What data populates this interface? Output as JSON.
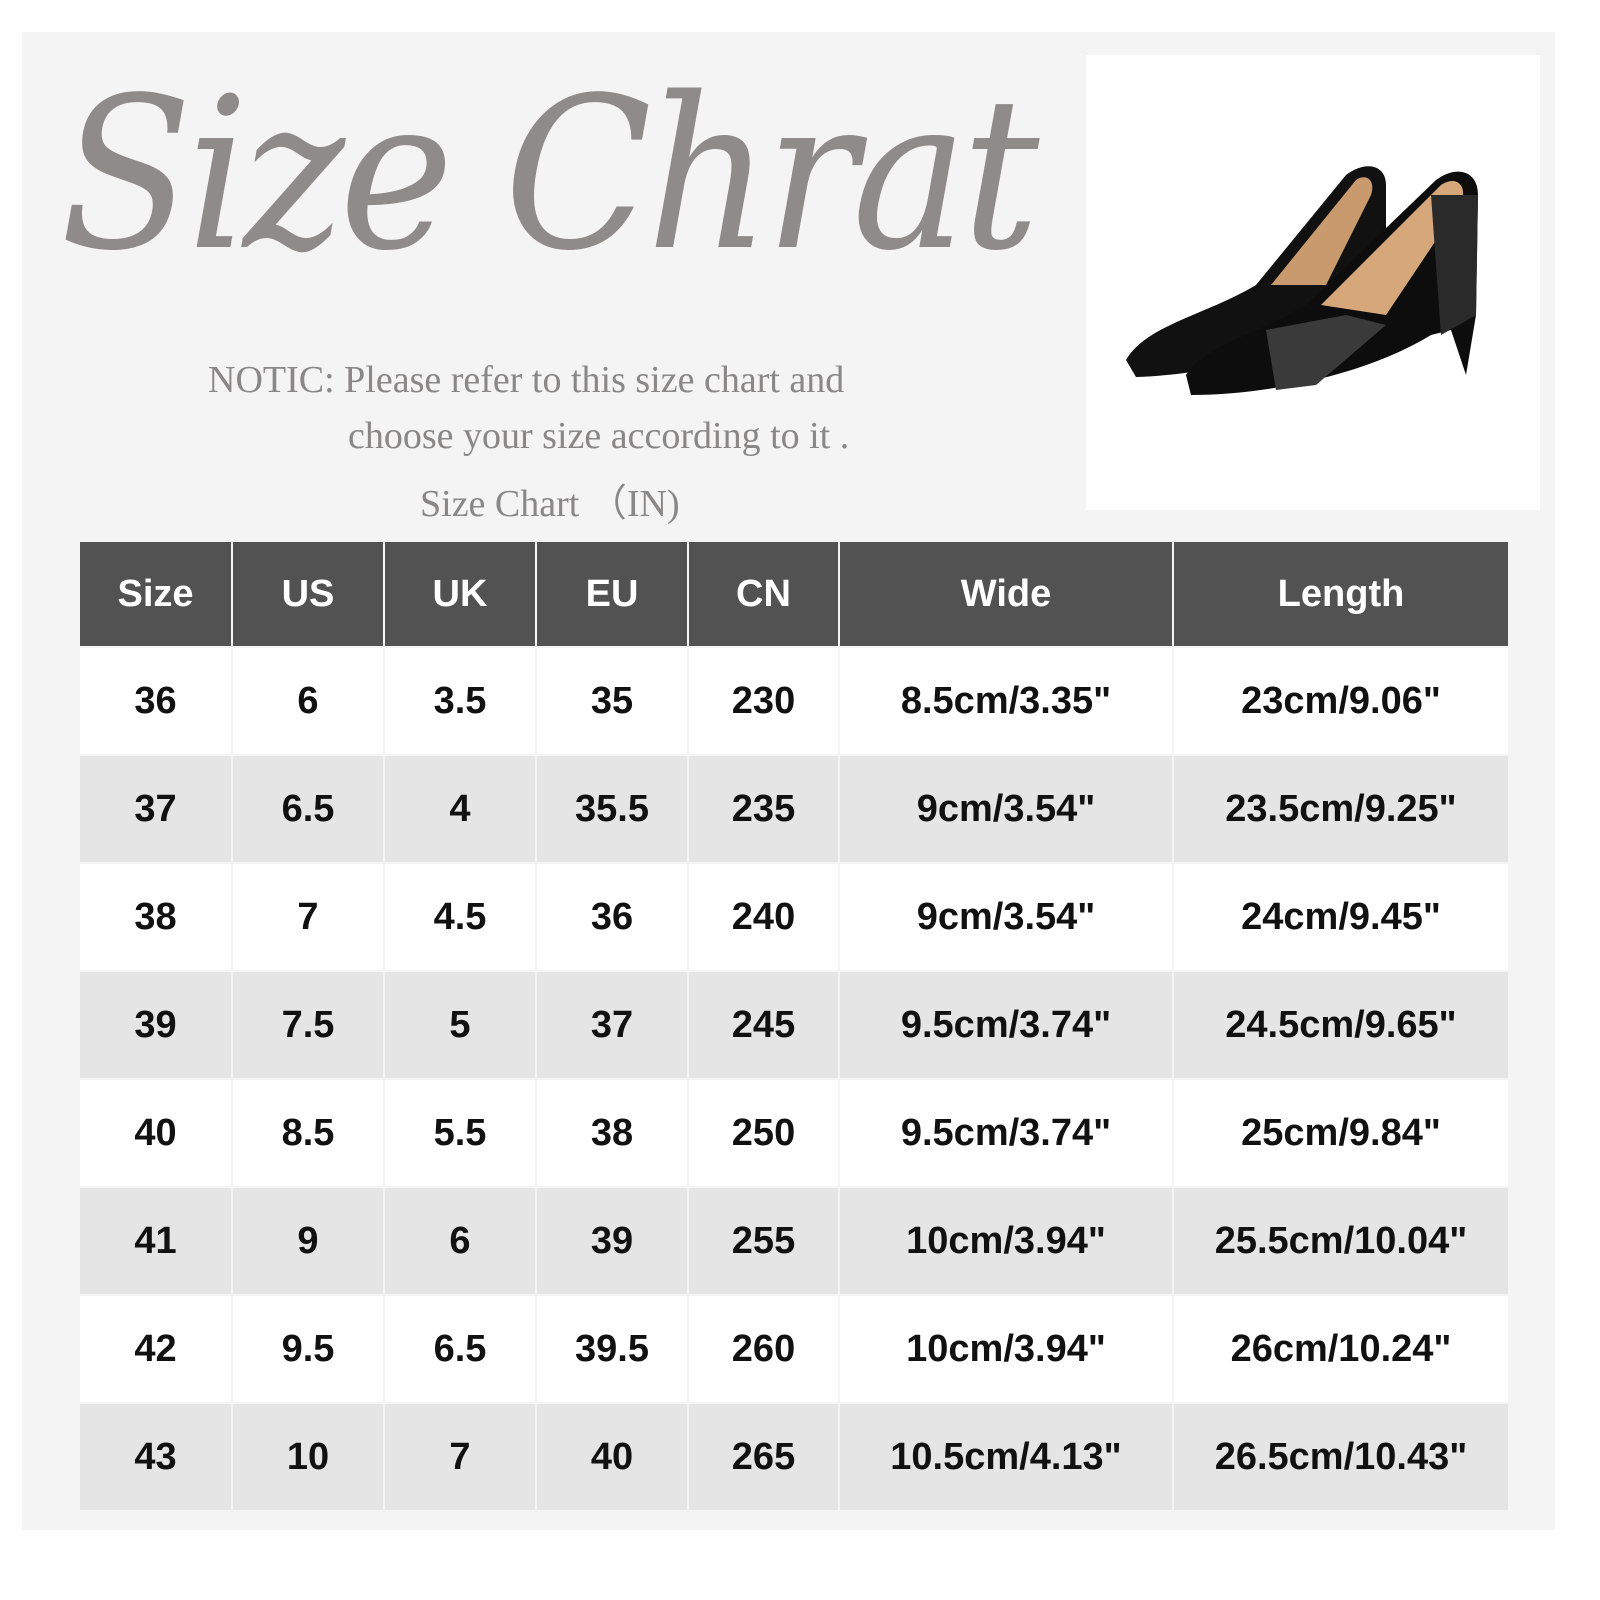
{
  "title": "Size Chrat",
  "notice_line1": "NOTIC: Please refer to this size chart and",
  "notice_line2": "choose your size according to it .",
  "subtitle": "Size Chart （IN)",
  "colors": {
    "header_bg": "#525252",
    "stripe": "#e6e5e5",
    "title": "#8f8b8b"
  },
  "chart_data": {
    "type": "table",
    "columns": [
      "Size",
      "US",
      "UK",
      "EU",
      "CN",
      "Wide",
      "Length"
    ],
    "rows": [
      [
        "36",
        "6",
        "3.5",
        "35",
        "230",
        "8.5cm/3.35\"",
        "23cm/9.06\""
      ],
      [
        "37",
        "6.5",
        "4",
        "35.5",
        "235",
        "9cm/3.54\"",
        "23.5cm/9.25\""
      ],
      [
        "38",
        "7",
        "4.5",
        "36",
        "240",
        "9cm/3.54\"",
        "24cm/9.45\""
      ],
      [
        "39",
        "7.5",
        "5",
        "37",
        "245",
        "9.5cm/3.74\"",
        "24.5cm/9.65\""
      ],
      [
        "40",
        "8.5",
        "5.5",
        "38",
        "250",
        "9.5cm/3.74\"",
        "25cm/9.84\""
      ],
      [
        "41",
        "9",
        "6",
        "39",
        "255",
        "10cm/3.94\"",
        "25.5cm/10.04\""
      ],
      [
        "42",
        "9.5",
        "6.5",
        "39.5",
        "260",
        "10cm/3.94\"",
        "26cm/10.24\""
      ],
      [
        "43",
        "10",
        "7",
        "40",
        "265",
        "10.5cm/4.13\"",
        "26.5cm/10.43\""
      ]
    ]
  }
}
